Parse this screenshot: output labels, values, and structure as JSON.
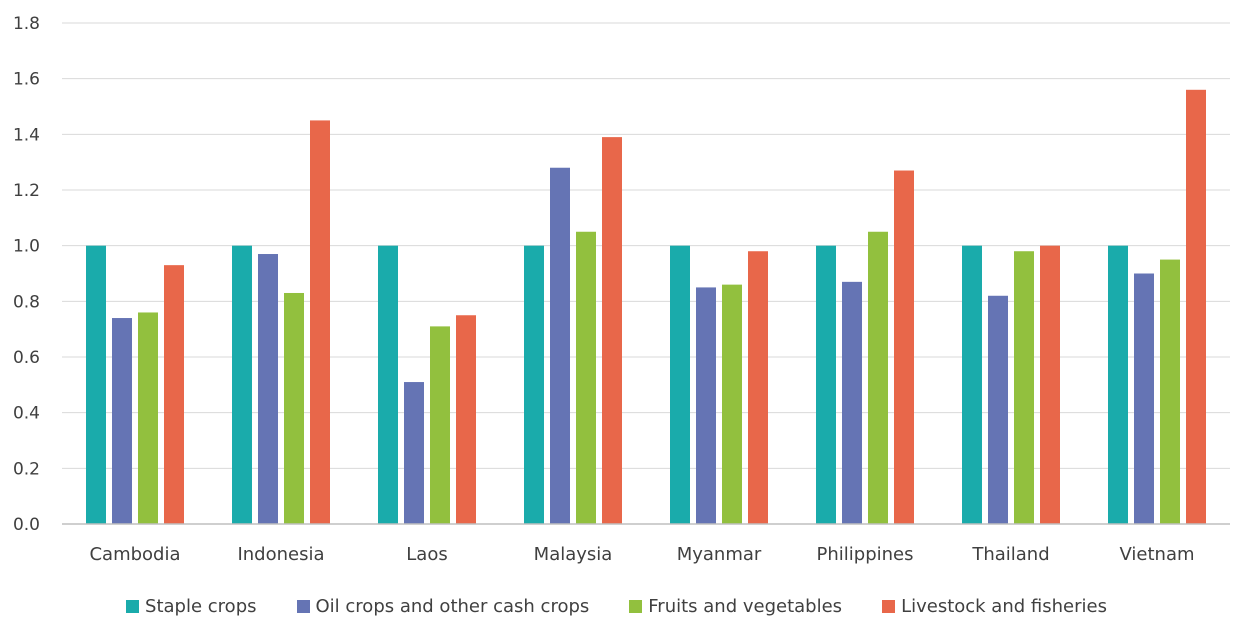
{
  "chart_data": {
    "type": "bar",
    "title": "",
    "xlabel": "",
    "ylabel": "",
    "ylim": [
      0,
      1.8
    ],
    "yticks": [
      "0.0",
      "0.2",
      "0.4",
      "0.6",
      "0.8",
      "1.0",
      "1.2",
      "1.4",
      "1.6",
      "1.8"
    ],
    "grid": true,
    "legend_position": "bottom",
    "categories": [
      "Cambodia",
      "Indonesia",
      "Laos",
      "Malaysia",
      "Myanmar",
      "Philippines",
      "Thailand",
      "Vietnam"
    ],
    "series": [
      {
        "name": "Staple crops",
        "color": "#1AABAB",
        "values": [
          1.0,
          1.0,
          1.0,
          1.0,
          1.0,
          1.0,
          1.0,
          1.0
        ]
      },
      {
        "name": "Oil crops and other cash crops",
        "color": "#6574B4",
        "values": [
          0.74,
          0.97,
          0.51,
          1.28,
          0.85,
          0.87,
          0.82,
          0.9
        ]
      },
      {
        "name": "Fruits and vegetables",
        "color": "#92C03E",
        "values": [
          0.76,
          0.83,
          0.71,
          1.05,
          0.86,
          1.05,
          0.98,
          0.95
        ]
      },
      {
        "name": "Livestock and fisheries",
        "color": "#E8674A",
        "values": [
          0.93,
          1.45,
          0.75,
          1.39,
          0.98,
          1.27,
          1.0,
          1.56
        ]
      }
    ]
  },
  "style": {
    "grid_color": "#d9d9d9",
    "axis_color": "#bfbfbf",
    "text_color": "#404040"
  }
}
